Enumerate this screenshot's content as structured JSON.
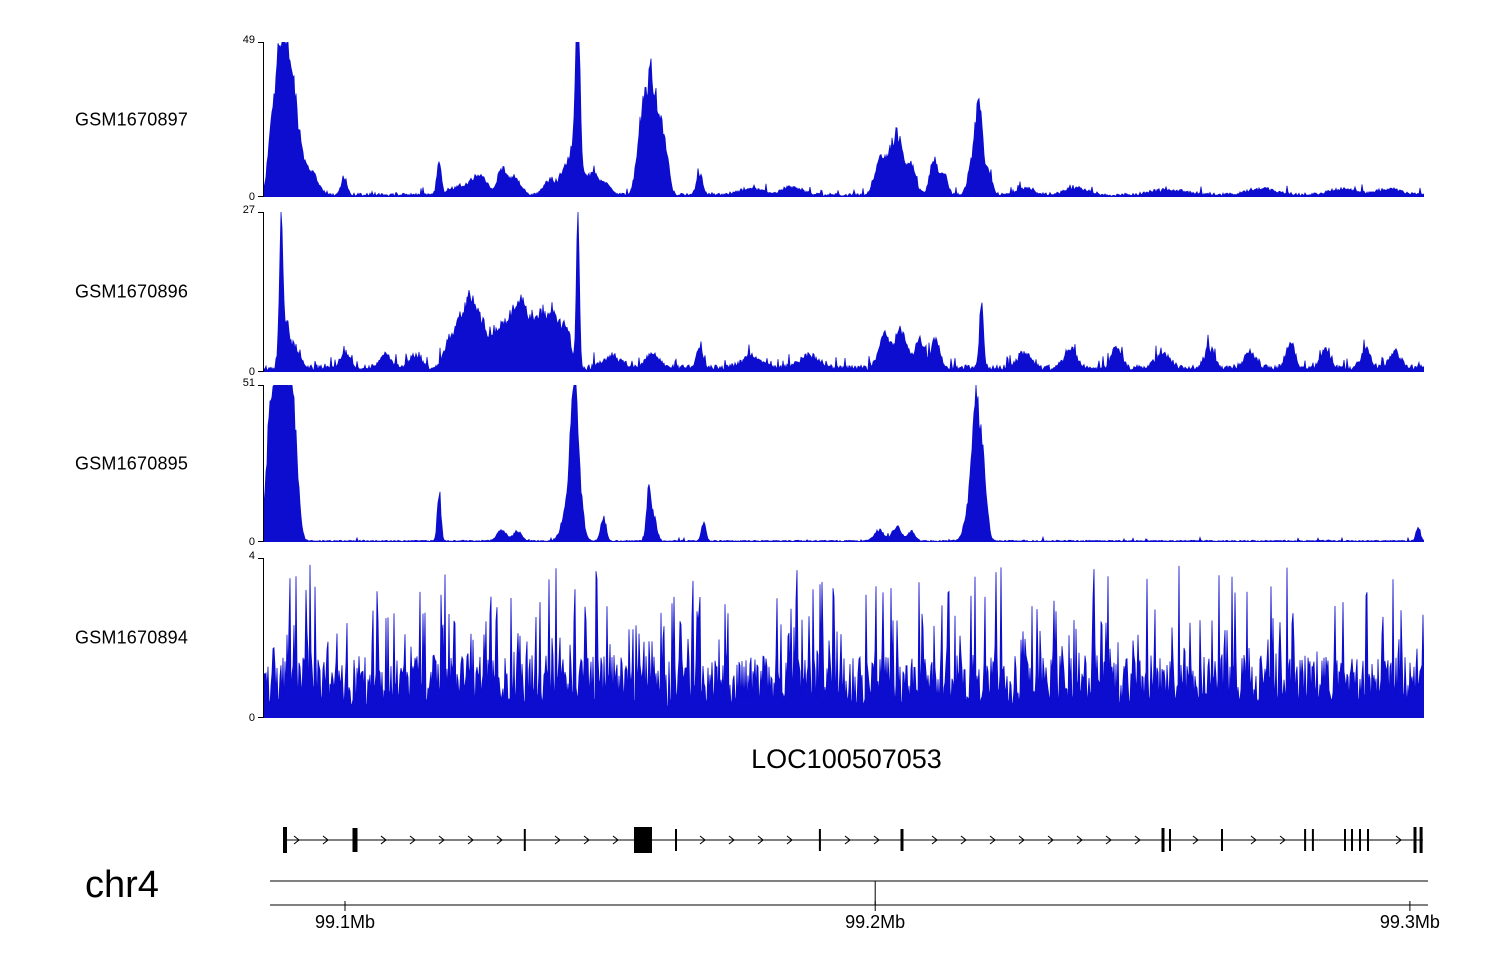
{
  "chart_data": {
    "type": "area",
    "title": "",
    "color": "#0d0dd0",
    "y_zero_label": "0",
    "x_axis": {
      "chrom": "chr4",
      "range_mb": [
        99.085,
        99.303
      ],
      "ticks": [
        {
          "label": "99.1Mb",
          "pos": 0.069
        },
        {
          "label": "99.2Mb",
          "pos": 0.526
        },
        {
          "label": "99.3Mb",
          "pos": 0.987
        }
      ]
    },
    "series": [
      {
        "name": "GSM1670897",
        "ymax": 49,
        "seed": 8971,
        "noise": {
          "base": 0.9,
          "var": 1.1,
          "spike_prob": 0.06,
          "spike_max": 2.2
        },
        "peaks": [
          [
            0.006,
            16,
            0.003
          ],
          [
            0.013,
            30,
            0.004
          ],
          [
            0.019,
            34,
            0.005
          ],
          [
            0.027,
            20,
            0.005
          ],
          [
            0.04,
            7,
            0.006
          ],
          [
            0.069,
            5,
            0.0025
          ],
          [
            0.151,
            11,
            0.0018
          ],
          [
            0.17,
            3,
            0.008
          ],
          [
            0.186,
            5.5,
            0.006
          ],
          [
            0.205,
            7.5,
            0.004
          ],
          [
            0.216,
            5,
            0.005
          ],
          [
            0.246,
            4.5,
            0.005
          ],
          [
            0.258,
            6,
            0.004
          ],
          [
            0.269,
            18,
            0.005
          ],
          [
            0.2705,
            49,
            0.0016
          ],
          [
            0.284,
            7,
            0.004
          ],
          [
            0.295,
            4,
            0.004
          ],
          [
            0.3255,
            22,
            0.004
          ],
          [
            0.333,
            33,
            0.0035
          ],
          [
            0.3405,
            23,
            0.0035
          ],
          [
            0.3465,
            10,
            0.003
          ],
          [
            0.3755,
            7,
            0.0025
          ],
          [
            0.42,
            2,
            0.01
          ],
          [
            0.455,
            2.5,
            0.008
          ],
          [
            0.532,
            11,
            0.005
          ],
          [
            0.5455,
            19,
            0.005
          ],
          [
            0.558,
            9,
            0.004
          ],
          [
            0.5775,
            11,
            0.0035
          ],
          [
            0.5865,
            6,
            0.003
          ],
          [
            0.611,
            9,
            0.004
          ],
          [
            0.6165,
            26,
            0.003
          ],
          [
            0.6245,
            7,
            0.003
          ],
          [
            0.655,
            2,
            0.008
          ],
          [
            0.7,
            2,
            0.01
          ],
          [
            0.78,
            1.5,
            0.015
          ],
          [
            0.86,
            2,
            0.012
          ],
          [
            0.93,
            1.8,
            0.012
          ],
          [
            0.97,
            2,
            0.01
          ]
        ]
      },
      {
        "name": "GSM1670896",
        "ymax": 27,
        "seed": 8961,
        "noise": {
          "base": 0.95,
          "var": 1.0,
          "spike_prob": 0.08,
          "spike_max": 2.0
        },
        "peaks": [
          [
            0.0147,
            21,
            0.0015
          ],
          [
            0.019,
            7,
            0.0035
          ],
          [
            0.028,
            3,
            0.004
          ],
          [
            0.07,
            2.5,
            0.004
          ],
          [
            0.105,
            2.2,
            0.005
          ],
          [
            0.13,
            2,
            0.005
          ],
          [
            0.16,
            4.5,
            0.005
          ],
          [
            0.17,
            8,
            0.004
          ],
          [
            0.178,
            10.5,
            0.0035
          ],
          [
            0.186,
            7.5,
            0.004
          ],
          [
            0.196,
            5.5,
            0.005
          ],
          [
            0.206,
            6.5,
            0.004
          ],
          [
            0.215,
            8.5,
            0.004
          ],
          [
            0.2225,
            9.5,
            0.0035
          ],
          [
            0.231,
            7.5,
            0.004
          ],
          [
            0.2395,
            8,
            0.0035
          ],
          [
            0.2475,
            8.5,
            0.0035
          ],
          [
            0.2555,
            6.5,
            0.004
          ],
          [
            0.262,
            5,
            0.003
          ],
          [
            0.2705,
            27,
            0.0013
          ],
          [
            0.3,
            2,
            0.008
          ],
          [
            0.335,
            2.5,
            0.006
          ],
          [
            0.3755,
            4,
            0.0025
          ],
          [
            0.42,
            2,
            0.008
          ],
          [
            0.47,
            2,
            0.008
          ],
          [
            0.535,
            5.5,
            0.005
          ],
          [
            0.549,
            6.5,
            0.005
          ],
          [
            0.5655,
            4.5,
            0.004
          ],
          [
            0.579,
            5,
            0.0035
          ],
          [
            0.6185,
            12.5,
            0.0016
          ],
          [
            0.655,
            2.5,
            0.006
          ],
          [
            0.695,
            3,
            0.005
          ],
          [
            0.735,
            3.5,
            0.004
          ],
          [
            0.775,
            2.5,
            0.006
          ],
          [
            0.815,
            3.5,
            0.004
          ],
          [
            0.85,
            2.5,
            0.005
          ],
          [
            0.885,
            4,
            0.0035
          ],
          [
            0.915,
            3,
            0.004
          ],
          [
            0.95,
            3.2,
            0.004
          ],
          [
            0.975,
            2.5,
            0.005
          ]
        ]
      },
      {
        "name": "GSM1670895",
        "ymax": 51,
        "seed": 8951,
        "noise": {
          "base": 0.55,
          "var": 0.8,
          "spike_prob": 0.03,
          "spike_max": 1.2
        },
        "peaks": [
          [
            0.005,
            26,
            0.0035
          ],
          [
            0.012,
            44,
            0.005
          ],
          [
            0.0195,
            42,
            0.005
          ],
          [
            0.026,
            24,
            0.0035
          ],
          [
            0.151,
            16,
            0.0015
          ],
          [
            0.205,
            3.5,
            0.004
          ],
          [
            0.2185,
            3,
            0.0035
          ],
          [
            0.2625,
            12,
            0.005
          ],
          [
            0.2675,
            48,
            0.0028
          ],
          [
            0.273,
            10,
            0.003
          ],
          [
            0.2925,
            7.5,
            0.0022
          ],
          [
            0.3315,
            15,
            0.0018
          ],
          [
            0.336,
            8,
            0.0025
          ],
          [
            0.379,
            6,
            0.0018
          ],
          [
            0.53,
            3.5,
            0.004
          ],
          [
            0.5455,
            4.5,
            0.004
          ],
          [
            0.558,
            3,
            0.003
          ],
          [
            0.608,
            10,
            0.004
          ],
          [
            0.6145,
            44,
            0.0035
          ],
          [
            0.621,
            16,
            0.0028
          ],
          [
            0.995,
            4.5,
            0.0018
          ]
        ]
      },
      {
        "name": "GSM1670894",
        "ymax": 4,
        "seed": 8941,
        "noise": {
          "base": 1.05,
          "var": 1.25,
          "spike_prob": 0.28,
          "spike_max": 2.3
        },
        "peaks": [
          [
            0.715,
            3.1,
            0.0009
          ]
        ]
      }
    ],
    "gene": {
      "name": "LOC100507053",
      "strand": "right",
      "exons": [
        [
          0.0172,
          4,
          26
        ],
        [
          0.0776,
          5,
          24
        ],
        [
          0.224,
          2,
          22
        ],
        [
          0.3259,
          18,
          26
        ],
        [
          0.3543,
          2,
          22
        ],
        [
          0.4784,
          2,
          22
        ],
        [
          0.5491,
          3,
          22
        ],
        [
          0.7741,
          3,
          24
        ],
        [
          0.7802,
          2,
          22
        ],
        [
          0.825,
          2,
          22
        ],
        [
          0.8966,
          2,
          22
        ],
        [
          0.9034,
          2,
          22
        ],
        [
          0.931,
          2,
          22
        ],
        [
          0.9371,
          2,
          22
        ],
        [
          0.944,
          2,
          22
        ],
        [
          0.9509,
          2,
          22
        ],
        [
          0.9914,
          3,
          26
        ],
        [
          0.9966,
          3,
          26
        ]
      ]
    }
  }
}
